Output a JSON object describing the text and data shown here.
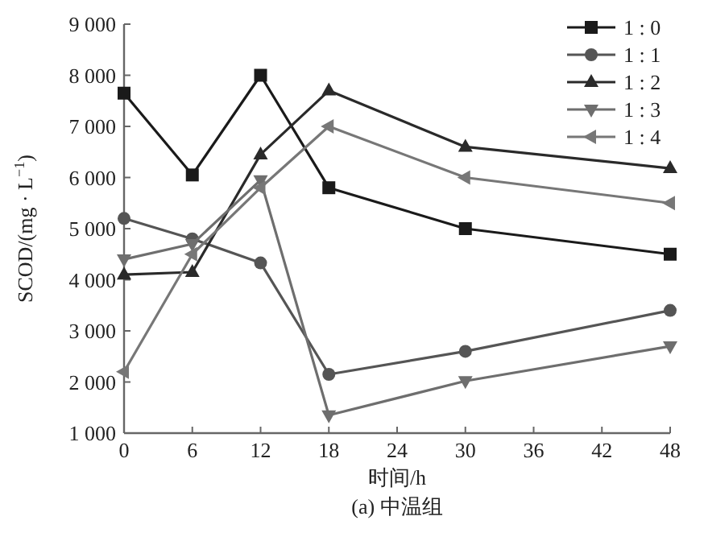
{
  "chart_data": {
    "type": "line",
    "xlabel": "时间/h",
    "ylabel": "SCOD/(mg · L$^{−1}$)",
    "annotations": [
      "(a) 中温组"
    ],
    "x": [
      0,
      6,
      12,
      18,
      30,
      48
    ],
    "xlim": [
      0,
      48
    ],
    "xticks": [
      0,
      6,
      12,
      18,
      24,
      30,
      36,
      42,
      48
    ],
    "ylim": [
      1000,
      9000
    ],
    "yticks": [
      {
        "value": 1000,
        "label": "1 000"
      },
      {
        "value": 2000,
        "label": "2 000"
      },
      {
        "value": 3000,
        "label": "3 000"
      },
      {
        "value": 4000,
        "label": "4 000"
      },
      {
        "value": 5000,
        "label": "5 000"
      },
      {
        "value": 6000,
        "label": "6 000"
      },
      {
        "value": 7000,
        "label": "7 000"
      },
      {
        "value": 8000,
        "label": "8 000"
      },
      {
        "value": 9000,
        "label": "9 000"
      }
    ],
    "grid": false,
    "legend": "top right",
    "line_style": "solid",
    "series": [
      {
        "name": "1 : 0",
        "color": "#1a1a1a",
        "marker": "square",
        "values": [
          7650,
          6050,
          8000,
          5800,
          5000,
          4500
        ]
      },
      {
        "name": "1 : 1",
        "color": "#555555",
        "marker": "circle",
        "values": [
          5200,
          4800,
          4330,
          2150,
          2600,
          3400
        ]
      },
      {
        "name": "1 : 2",
        "color": "#2a2a2a",
        "marker": "triangle",
        "values": [
          4100,
          4150,
          6450,
          7700,
          6600,
          6180
        ]
      },
      {
        "name": "1 : 3",
        "color": "#6e6e6e",
        "marker": "triangle-down",
        "values": [
          4400,
          4700,
          5950,
          1350,
          2020,
          2700
        ]
      },
      {
        "name": "1 : 4",
        "color": "#777777",
        "marker": "triangle-left",
        "values": [
          2200,
          4500,
          5800,
          7000,
          6000,
          5500
        ]
      }
    ]
  }
}
